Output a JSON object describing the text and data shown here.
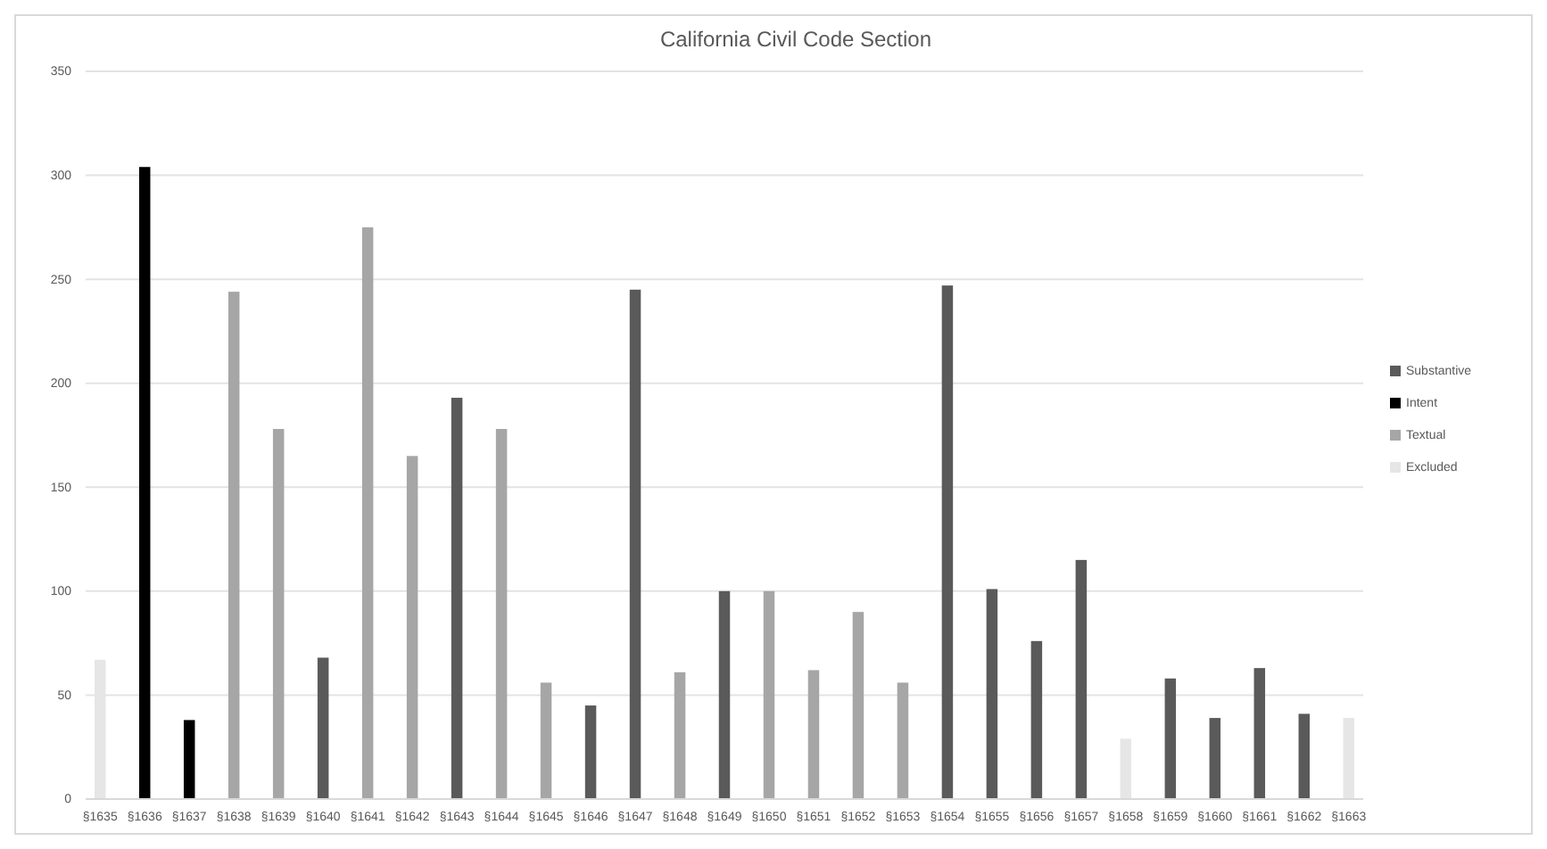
{
  "chart_data": {
    "type": "bar",
    "title": "California Civil Code Section",
    "stacked": true,
    "categories": [
      "§1635",
      "§1636",
      "§1637",
      "§1638",
      "§1639",
      "§1640",
      "§1641",
      "§1642",
      "§1643",
      "§1644",
      "§1645",
      "§1646",
      "§1647",
      "§1648",
      "§1649",
      "§1650",
      "§1651",
      "§1652",
      "§1653",
      "§1654",
      "§1655",
      "§1656",
      "§1657",
      "§1658",
      "§1659",
      "§1660",
      "§1661",
      "§1662",
      "§1663"
    ],
    "series": [
      {
        "name": "Substantive",
        "color": "#5a5a5a",
        "values": [
          null,
          null,
          null,
          null,
          null,
          68,
          null,
          null,
          193,
          null,
          null,
          45,
          245,
          null,
          100,
          null,
          null,
          null,
          null,
          247,
          101,
          76,
          115,
          null,
          58,
          39,
          63,
          41,
          null
        ]
      },
      {
        "name": "Intent",
        "color": "#000000",
        "values": [
          null,
          304,
          38,
          null,
          null,
          null,
          null,
          null,
          null,
          null,
          null,
          null,
          null,
          null,
          null,
          null,
          null,
          null,
          null,
          null,
          null,
          null,
          null,
          null,
          null,
          null,
          null,
          null,
          null
        ]
      },
      {
        "name": "Textual",
        "color": "#a6a6a6",
        "values": [
          null,
          null,
          null,
          244,
          178,
          null,
          275,
          165,
          null,
          178,
          56,
          null,
          null,
          61,
          null,
          100,
          62,
          90,
          56,
          null,
          null,
          null,
          null,
          null,
          null,
          null,
          null,
          null,
          null
        ]
      },
      {
        "name": "Excluded",
        "color": "#e6e6e6",
        "values": [
          67,
          null,
          null,
          null,
          null,
          null,
          null,
          null,
          null,
          null,
          null,
          null,
          null,
          null,
          null,
          null,
          null,
          null,
          null,
          null,
          null,
          null,
          null,
          29,
          null,
          null,
          null,
          null,
          39
        ]
      }
    ],
    "ylim": [
      0,
      350
    ],
    "yticks": [
      0,
      50,
      100,
      150,
      200,
      250,
      300,
      350
    ],
    "grid": "y",
    "legend": "right"
  }
}
